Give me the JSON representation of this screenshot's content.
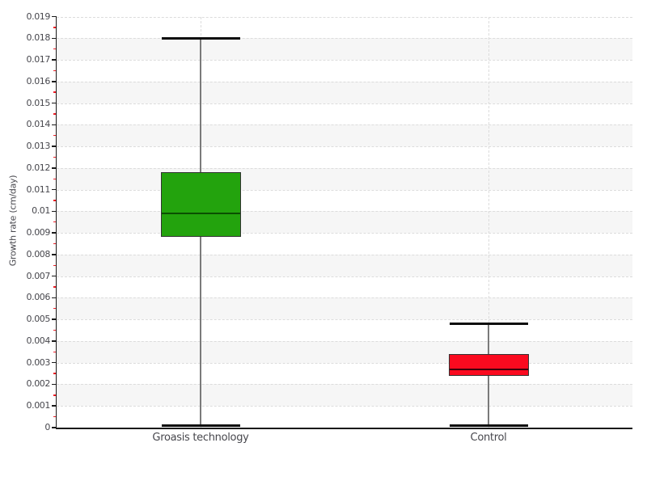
{
  "chart_data": {
    "type": "boxplot",
    "title": "",
    "xlabel": "",
    "ylabel": "Growth rate (cm/day)",
    "ylim": [
      0,
      0.019
    ],
    "ytick_step": 0.001,
    "yminor_tick_step": 0.0005,
    "grid": "horizontal-dashed and vertical-dashed at category centers, alternating shaded bands every 0.001",
    "legend": "none",
    "categories": [
      "Groasis technology",
      "Control"
    ],
    "series": [
      {
        "name": "Groasis technology",
        "min": 0.0001,
        "q1": 0.0088,
        "median": 0.0099,
        "q3": 0.0118,
        "max": 0.018,
        "fill": "#23a30d",
        "median_color": "#0a4f00"
      },
      {
        "name": "Control",
        "min": 0.0001,
        "q1": 0.0024,
        "median": 0.0027,
        "q3": 0.0034,
        "max": 0.0048,
        "fill": "#fa0a1f",
        "median_color": "#40000a"
      }
    ],
    "style": {
      "band_color": "#f6f6f6",
      "gridline_color": "#dcdcdc",
      "axis_color": "#1a1a1a",
      "major_tick_color": "#1a1a1a",
      "minor_tick_color": "#ee1c25",
      "whisker_color": "#7a7a7a",
      "cap_color": "#0d0d0d",
      "box_border_color": "#333333",
      "text_color": "#47474d"
    }
  },
  "axes": {
    "y_tick_labels": [
      "0",
      "0.001",
      "0.002",
      "0.003",
      "0.004",
      "0.005",
      "0.006",
      "0.007",
      "0.008",
      "0.009",
      "0.01",
      "0.011",
      "0.012",
      "0.013",
      "0.014",
      "0.015",
      "0.016",
      "0.017",
      "0.018",
      "0.019"
    ]
  }
}
